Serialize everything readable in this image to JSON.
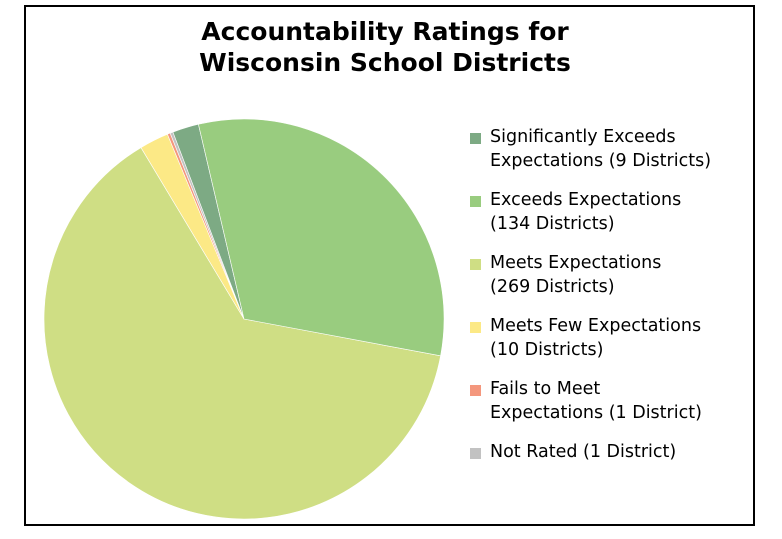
{
  "chart_data": {
    "type": "pie",
    "title": [
      "Accountability Ratings for",
      "Wisconsin School Districts"
    ],
    "legend_position": "right",
    "slices": [
      {
        "label": [
          "Significantly Exceeds",
          "Expectations (9 Districts)"
        ],
        "value": 9,
        "color": "#7daa84"
      },
      {
        "label": [
          "Exceeds Expectations",
          "(134 Districts)"
        ],
        "value": 134,
        "color": "#99cc7f"
      },
      {
        "label": [
          "Meets Expectations",
          "(269 Districts)"
        ],
        "value": 269,
        "color": "#cfde84"
      },
      {
        "label": [
          "Meets Few Expectations",
          "(10 Districts)"
        ],
        "value": 10,
        "color": "#fce986"
      },
      {
        "label": [
          "Fails to Meet",
          "Expectations (1 District)"
        ],
        "value": 1,
        "color": "#f4977d"
      },
      {
        "label": [
          "Not Rated (1 District)"
        ],
        "value": 1,
        "color": "#c2c2c2"
      }
    ]
  }
}
